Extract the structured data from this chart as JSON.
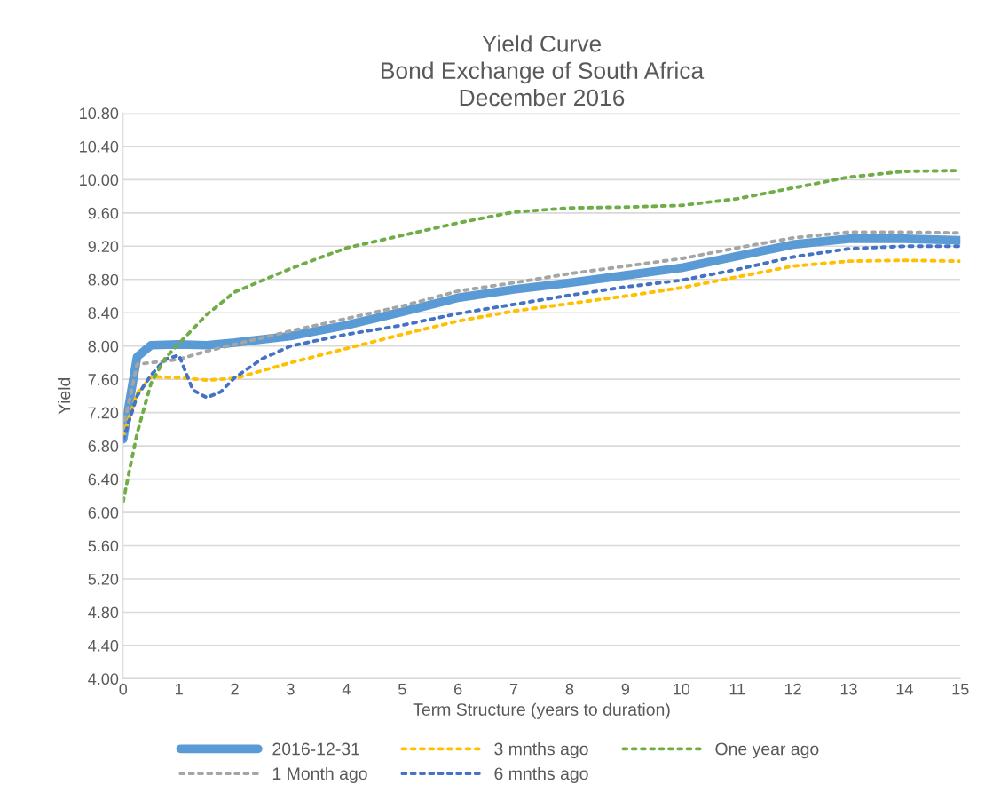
{
  "chart_data": {
    "type": "line",
    "title": "Yield Curve\nBond Exchange of South Africa\nDecember 2016",
    "xlabel": "Term Structure (years to duration)",
    "ylabel": "Yield",
    "series": [
      {
        "name": "2016-12-31",
        "color": "#5b9bd5",
        "line_style": "solid",
        "x": [
          0,
          0.25,
          0.5,
          1,
          1.5,
          2,
          3,
          4,
          5,
          6,
          7,
          8,
          9,
          10,
          11,
          12,
          13,
          14,
          15
        ],
        "values": [
          6.88,
          7.87,
          8.01,
          8.02,
          8.01,
          8.04,
          8.12,
          8.25,
          8.41,
          8.58,
          8.68,
          8.76,
          8.85,
          8.94,
          9.08,
          9.22,
          9.29,
          9.29,
          9.27
        ]
      },
      {
        "name": "1 Month ago",
        "color": "#a5a5a5",
        "line_style": "dotted",
        "x": [
          0,
          0.25,
          0.5,
          1,
          1.5,
          2,
          3,
          4,
          5,
          6,
          7,
          8,
          9,
          10,
          11,
          12,
          13,
          14,
          15
        ],
        "values": [
          7.0,
          7.78,
          7.8,
          7.84,
          7.94,
          8.02,
          8.18,
          8.33,
          8.48,
          8.66,
          8.76,
          8.87,
          8.96,
          9.05,
          9.18,
          9.3,
          9.37,
          9.37,
          9.36
        ]
      },
      {
        "name": "3 mnths ago",
        "color": "#ffc000",
        "line_style": "dotted",
        "x": [
          0,
          0.25,
          0.5,
          1,
          1.5,
          2,
          3,
          4,
          5,
          6,
          7,
          8,
          9,
          10,
          11,
          12,
          13,
          14,
          15
        ],
        "values": [
          6.91,
          7.43,
          7.63,
          7.62,
          7.59,
          7.61,
          7.8,
          7.97,
          8.14,
          8.3,
          8.42,
          8.51,
          8.6,
          8.7,
          8.83,
          8.96,
          9.02,
          9.03,
          9.02
        ]
      },
      {
        "name": "6 mnths ago",
        "color": "#4472c4",
        "line_style": "dotted",
        "x": [
          0,
          0.25,
          0.5,
          0.75,
          1,
          1.25,
          1.5,
          1.75,
          2,
          2.5,
          3,
          4,
          5,
          6,
          7,
          8,
          9,
          10,
          11,
          12,
          13,
          14,
          15
        ],
        "values": [
          6.87,
          7.4,
          7.65,
          7.84,
          7.89,
          7.47,
          7.38,
          7.45,
          7.62,
          7.85,
          8.0,
          8.14,
          8.25,
          8.39,
          8.5,
          8.61,
          8.71,
          8.79,
          8.92,
          9.07,
          9.17,
          9.2,
          9.2
        ]
      },
      {
        "name": "One year ago",
        "color": "#70ad47",
        "line_style": "dotted",
        "x": [
          0,
          0.25,
          0.5,
          0.75,
          1,
          1.5,
          2,
          3,
          4,
          5,
          6,
          7,
          8,
          9,
          10,
          11,
          12,
          13,
          14,
          15
        ],
        "values": [
          6.13,
          6.95,
          7.55,
          7.85,
          8.03,
          8.38,
          8.65,
          8.93,
          9.18,
          9.33,
          9.48,
          9.61,
          9.66,
          9.67,
          9.69,
          9.77,
          9.9,
          10.03,
          10.1,
          10.11
        ]
      }
    ],
    "xlim": [
      0,
      15
    ],
    "xticks": [
      0,
      1,
      2,
      3,
      4,
      5,
      6,
      7,
      8,
      9,
      10,
      11,
      12,
      13,
      14,
      15
    ],
    "ylim": [
      4.0,
      10.8
    ],
    "yticks": [
      {
        "value": 4.0,
        "label": "4.00"
      },
      {
        "value": 4.4,
        "label": "4.40"
      },
      {
        "value": 4.8,
        "label": "4.80"
      },
      {
        "value": 5.2,
        "label": "5.20"
      },
      {
        "value": 5.6,
        "label": "5.60"
      },
      {
        "value": 6.0,
        "label": "6.00"
      },
      {
        "value": 6.4,
        "label": "6.40"
      },
      {
        "value": 6.8,
        "label": "6.80"
      },
      {
        "value": 7.2,
        "label": "7.20"
      },
      {
        "value": 7.6,
        "label": "7.60"
      },
      {
        "value": 8.0,
        "label": "8.00"
      },
      {
        "value": 8.4,
        "label": "8.40"
      },
      {
        "value": 8.8,
        "label": "8.80"
      },
      {
        "value": 9.2,
        "label": "9.20"
      },
      {
        "value": 9.6,
        "label": "9.60"
      },
      {
        "value": 10.0,
        "label": "10.00"
      },
      {
        "value": 10.4,
        "label": "10.40"
      },
      {
        "value": 10.8,
        "label": "10.80"
      }
    ],
    "grid": "y",
    "legend": "bottom"
  }
}
